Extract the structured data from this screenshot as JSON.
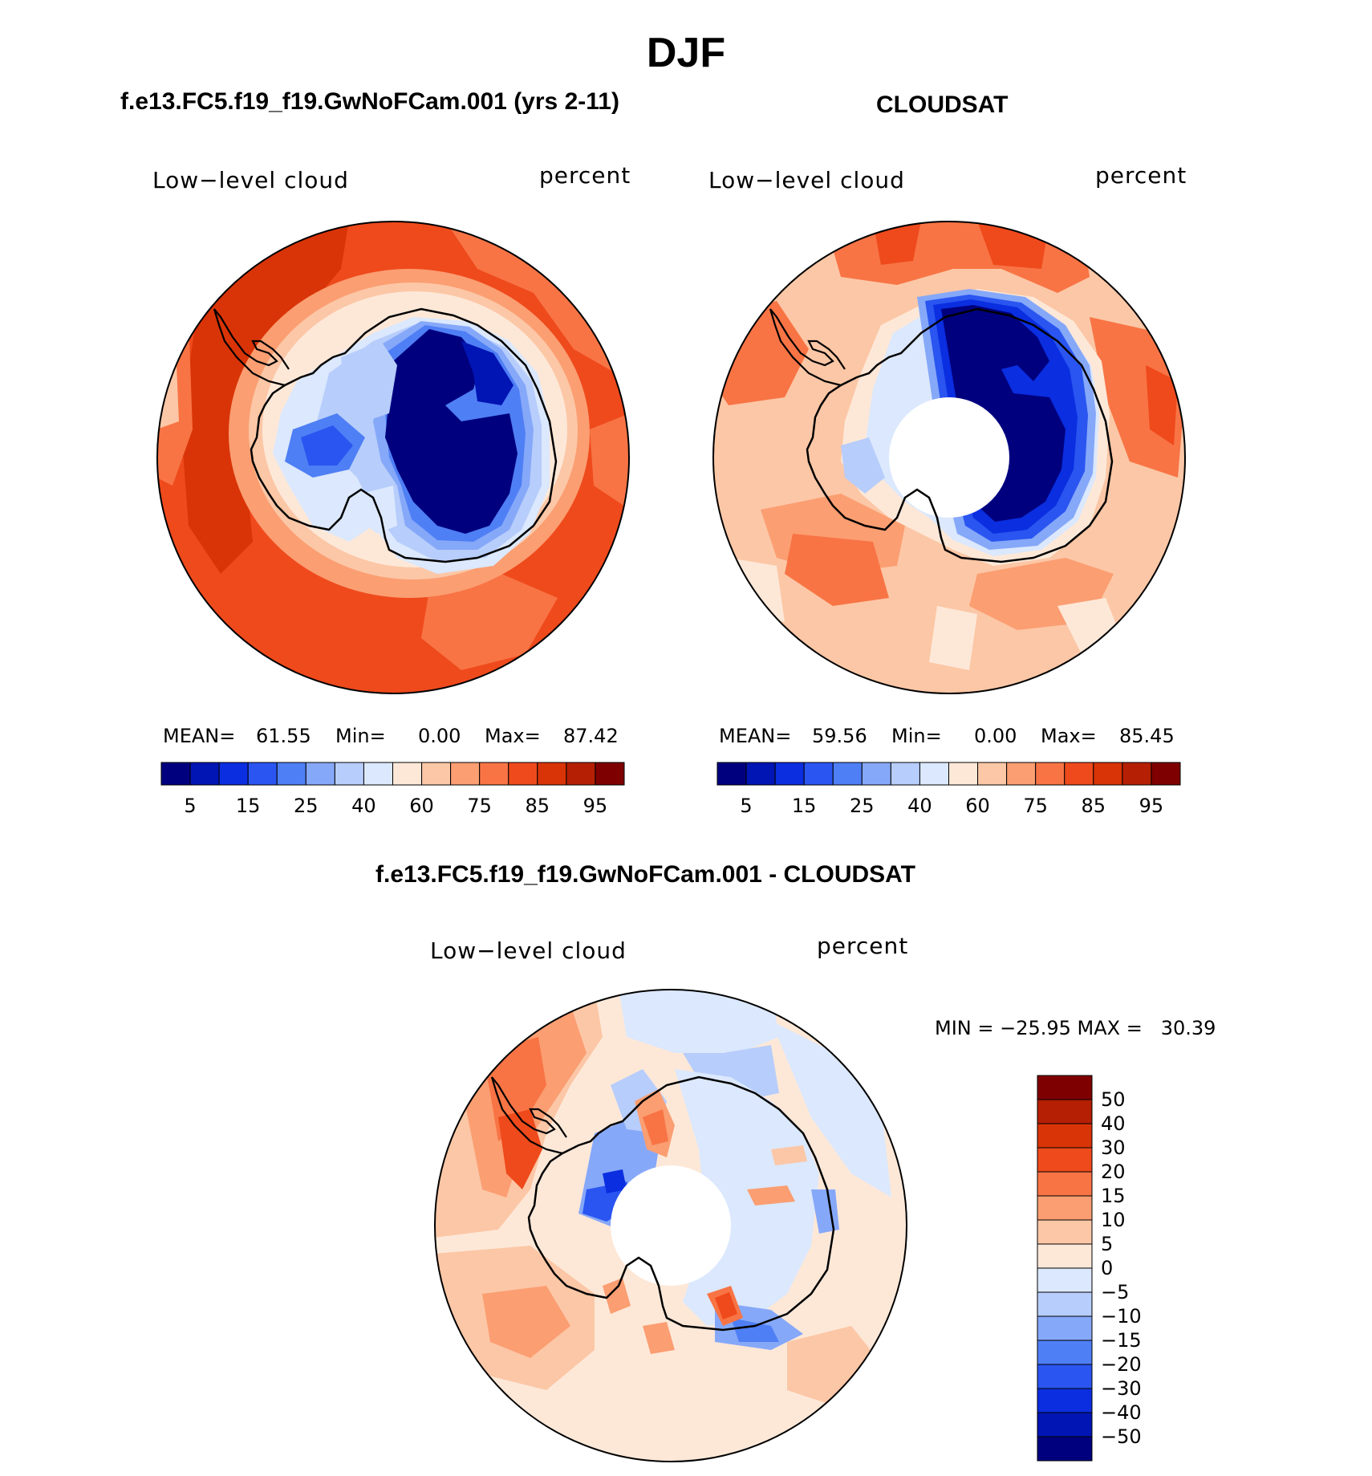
{
  "title": "DJF",
  "panels": [
    {
      "heading": "f.e13.FC5.f19_f19.GwNoFCam.001 (yrs 2-11)",
      "left_label": "Low−level cloud",
      "right_label": "percent",
      "stats": {
        "mean_label": "MEAN=",
        "mean": "61.55",
        "min_label": "Min=",
        "min": "0.00",
        "max_label": "Max=",
        "max": "87.42"
      },
      "has_pole_hole": false
    },
    {
      "heading": "CLOUDSAT",
      "left_label": "Low−level cloud",
      "right_label": "percent",
      "stats": {
        "mean_label": "MEAN=",
        "mean": "59.56",
        "min_label": "Min=",
        "min": "0.00",
        "max_label": "Max=",
        "max": "85.45"
      },
      "has_pole_hole": true
    },
    {
      "heading": "f.e13.FC5.f19_f19.GwNoFCam.001 - CLOUDSAT",
      "left_label": "Low−level cloud",
      "right_label": "percent",
      "minmax": "MIN = −25.95 MAX =   30.39",
      "has_pole_hole": true
    }
  ],
  "colorbar_abs": {
    "colors": [
      "#00007f",
      "#0015b3",
      "#0a2ee0",
      "#2a55f0",
      "#4f7ff5",
      "#86a8f9",
      "#b7cdfb",
      "#dbe8fd",
      "#fde8d8",
      "#fcc7a6",
      "#fb9e72",
      "#f87445",
      "#ef4a1c",
      "#d93407",
      "#b51f03",
      "#7f0000"
    ],
    "tick_labels": [
      "5",
      "15",
      "25",
      "40",
      "60",
      "75",
      "85",
      "95"
    ]
  },
  "colorbar_diff": {
    "colors": [
      "#7f0000",
      "#b51f03",
      "#d93407",
      "#ef4a1c",
      "#f87445",
      "#fb9e72",
      "#fcc7a6",
      "#fde8d8",
      "#dbe8fd",
      "#b7cdfb",
      "#86a8f9",
      "#4f7ff5",
      "#2a55f0",
      "#0a2ee0",
      "#0015b3",
      "#00007f"
    ],
    "tick_labels": [
      "50",
      "40",
      "30",
      "20",
      "15",
      "10",
      "5",
      "0",
      "−5",
      "−10",
      "−15",
      "−20",
      "−30",
      "−40",
      "−50"
    ]
  }
}
